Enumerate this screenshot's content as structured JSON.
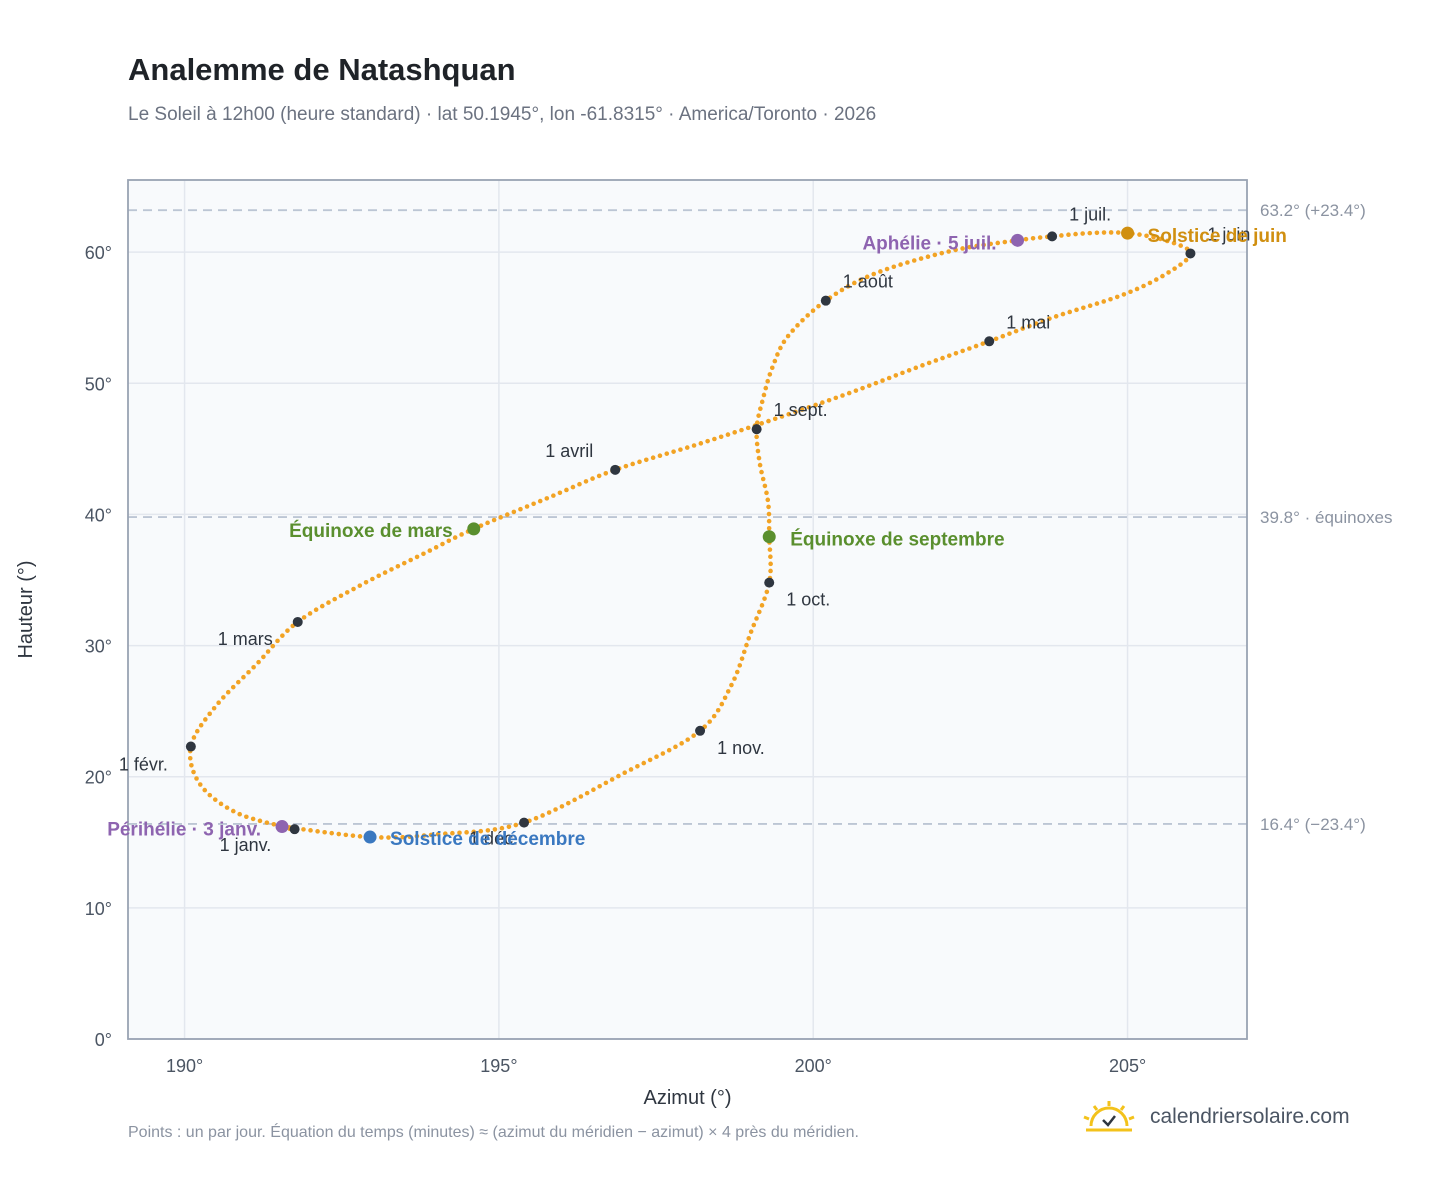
{
  "header": {
    "title": "Analemme de Natashquan",
    "subtitle": "Le Soleil à 12h00 (heure standard) · lat 50.1945°, lon -61.8315° · America/Toronto · 2026"
  },
  "footer": {
    "note": "Points : un par jour. Équation du temps (minutes) ≈ (azimut du méridien − azimut) × 4 près du méridien.",
    "brand": "calendriersolaire.com"
  },
  "colors": {
    "curve": "#f2a324",
    "month_dot": "#2f3640",
    "solstice_june": "#d08f10",
    "solstice_december": "#3a78c0",
    "equinox": "#5a8f2e",
    "apsis": "#8e64b0",
    "reference_line": "#bcc6d4",
    "grid": "#e3e7ee",
    "plot_bg": "#f8fafc",
    "frame": "#99a3b3"
  },
  "chart_data": {
    "type": "scatter",
    "xlabel": "Azimut (°)",
    "ylabel": "Hauteur (°)",
    "xlim": [
      189.1,
      206.9
    ],
    "ylim": [
      0,
      65.5
    ],
    "x_ticks": [
      190,
      195,
      200,
      205
    ],
    "y_ticks": [
      0,
      10,
      20,
      30,
      40,
      50,
      60
    ],
    "x_tick_labels": [
      "190°",
      "195°",
      "200°",
      "205°"
    ],
    "y_tick_labels": [
      "0°",
      "10°",
      "20°",
      "30°",
      "40°",
      "50°",
      "60°"
    ],
    "grid": true,
    "reference_lines": [
      {
        "y": 63.2,
        "label": "63.2° (+23.4°)"
      },
      {
        "y": 39.8,
        "label": "39.8° · équinoxes"
      },
      {
        "y": 16.4,
        "label": "16.4° (−23.4°)"
      }
    ],
    "series": [
      {
        "points_per": "day",
        "path": [
          [
            191.75,
            16.0
          ],
          [
            190.85,
            17.2
          ],
          [
            190.25,
            19.4
          ],
          [
            190.1,
            22.3
          ],
          [
            190.5,
            25.4
          ],
          [
            191.15,
            28.6
          ],
          [
            191.8,
            31.8
          ],
          [
            192.8,
            34.6
          ],
          [
            193.8,
            37.0
          ],
          [
            194.6,
            38.9
          ],
          [
            195.8,
            41.3
          ],
          [
            196.85,
            43.4
          ],
          [
            198.2,
            45.4
          ],
          [
            199.4,
            47.3
          ],
          [
            200.6,
            49.3
          ],
          [
            201.7,
            51.3
          ],
          [
            202.8,
            53.2
          ],
          [
            203.8,
            55.0
          ],
          [
            204.9,
            56.7
          ],
          [
            205.6,
            58.3
          ],
          [
            206.0,
            59.9
          ],
          [
            205.6,
            60.9
          ],
          [
            205.0,
            61.45
          ],
          [
            204.4,
            61.45
          ],
          [
            203.8,
            61.2
          ],
          [
            203.25,
            60.9
          ],
          [
            202.2,
            60.1
          ],
          [
            201.0,
            58.4
          ],
          [
            200.2,
            56.3
          ],
          [
            199.6,
            53.6
          ],
          [
            199.35,
            51.2
          ],
          [
            199.2,
            48.8
          ],
          [
            199.1,
            46.5
          ],
          [
            199.15,
            43.9
          ],
          [
            199.28,
            41.0
          ],
          [
            199.3,
            38.3
          ],
          [
            199.3,
            34.8
          ],
          [
            199.0,
            30.9
          ],
          [
            198.7,
            27.0
          ],
          [
            198.2,
            23.5
          ],
          [
            197.0,
            20.3
          ],
          [
            195.4,
            16.5
          ],
          [
            194.0,
            15.6
          ],
          [
            192.95,
            15.4
          ],
          [
            191.55,
            16.2
          ],
          [
            191.75,
            16.0
          ]
        ]
      }
    ],
    "month_markers": [
      {
        "label": "1 janv.",
        "x": 191.75,
        "y": 16.0
      },
      {
        "label": "1 févr.",
        "x": 190.1,
        "y": 22.3
      },
      {
        "label": "1 mars",
        "x": 191.8,
        "y": 31.8
      },
      {
        "label": "1 avril",
        "x": 196.85,
        "y": 43.4
      },
      {
        "label": "1 mai",
        "x": 202.8,
        "y": 53.2
      },
      {
        "label": "1 juin",
        "x": 206.0,
        "y": 59.9
      },
      {
        "label": "1 juil.",
        "x": 203.8,
        "y": 61.2
      },
      {
        "label": "1 août",
        "x": 200.2,
        "y": 56.3
      },
      {
        "label": "1 sept.",
        "x": 199.1,
        "y": 46.5
      },
      {
        "label": "1 oct.",
        "x": 199.3,
        "y": 34.8
      },
      {
        "label": "1 nov.",
        "x": 198.2,
        "y": 23.5
      },
      {
        "label": "1 déc.",
        "x": 195.4,
        "y": 16.5
      }
    ],
    "events": [
      {
        "label": "Solstice de juin",
        "kind": "solstice_june",
        "x": 205.0,
        "y": 61.45
      },
      {
        "label": "Aphélie · 5 juil.",
        "kind": "apsis",
        "x": 203.25,
        "y": 60.9
      },
      {
        "label": "Équinoxe de mars",
        "kind": "equinox",
        "x": 194.6,
        "y": 38.9
      },
      {
        "label": "Équinoxe de septembre",
        "kind": "equinox",
        "x": 199.3,
        "y": 38.3
      },
      {
        "label": "Périhélie · 3 janv.",
        "kind": "apsis",
        "x": 191.55,
        "y": 16.2
      },
      {
        "label": "Solstice de décembre",
        "kind": "solstice_december",
        "x": 192.95,
        "y": 15.4
      }
    ]
  }
}
